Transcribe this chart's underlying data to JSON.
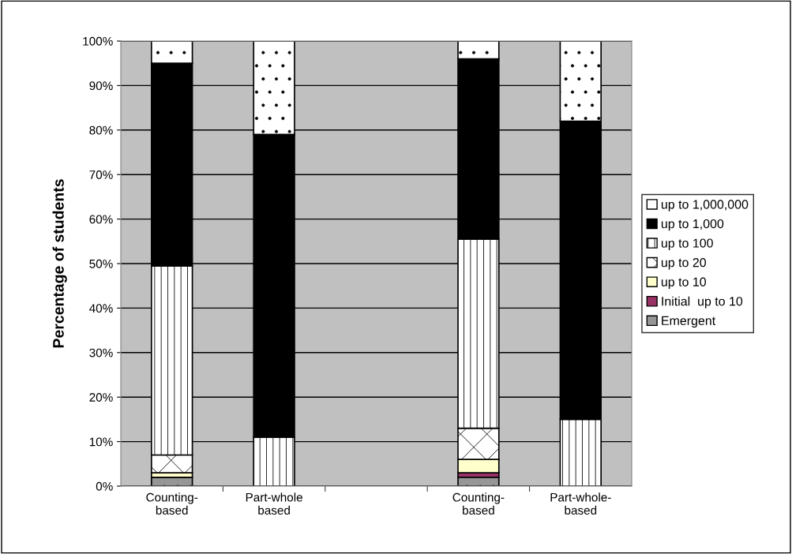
{
  "chart_data": {
    "type": "bar",
    "stacked": true,
    "ylabel": "Percentage of students",
    "categories": [
      "Counting-\nbased",
      "Part-whole\nbased",
      null,
      "Counting-\nbased",
      "Part-whole-\nbased"
    ],
    "series": [
      {
        "name": "Emergent",
        "color": "#969696",
        "values": [
          2,
          0,
          null,
          2,
          0
        ]
      },
      {
        "name": "Initial  up to 10",
        "color": "#993366",
        "values": [
          0,
          0,
          null,
          1,
          0
        ]
      },
      {
        "name": "up to 10",
        "color": "#ffffcc",
        "values": [
          1,
          0,
          null,
          3,
          0
        ]
      },
      {
        "name": "up to 20",
        "color": "#ffffff",
        "values": [
          4,
          0,
          null,
          7,
          0
        ]
      },
      {
        "name": "up to 100",
        "color": "#ffffff",
        "values": [
          42.5,
          11,
          null,
          42.5,
          15
        ]
      },
      {
        "name": "up to 1,000",
        "color": "#000000",
        "values": [
          45.5,
          68,
          null,
          40.5,
          67
        ]
      },
      {
        "name": "up to 1,000,000",
        "color": "#ffffff",
        "values": [
          5,
          21,
          null,
          4,
          18
        ]
      }
    ],
    "ylim": [
      0,
      100
    ],
    "yticks": [
      {
        "value": 0,
        "label": "0%"
      },
      {
        "value": 10,
        "label": "10%"
      },
      {
        "value": 20,
        "label": "20%"
      },
      {
        "value": 30,
        "label": "30%"
      },
      {
        "value": 40,
        "label": "40%"
      },
      {
        "value": 50,
        "label": "50%"
      },
      {
        "value": 60,
        "label": "60%"
      },
      {
        "value": 70,
        "label": "70%"
      },
      {
        "value": 80,
        "label": "80%"
      },
      {
        "value": 90,
        "label": "90%"
      },
      {
        "value": 100,
        "label": "100%"
      }
    ],
    "grid": "y",
    "legend": "right"
  }
}
